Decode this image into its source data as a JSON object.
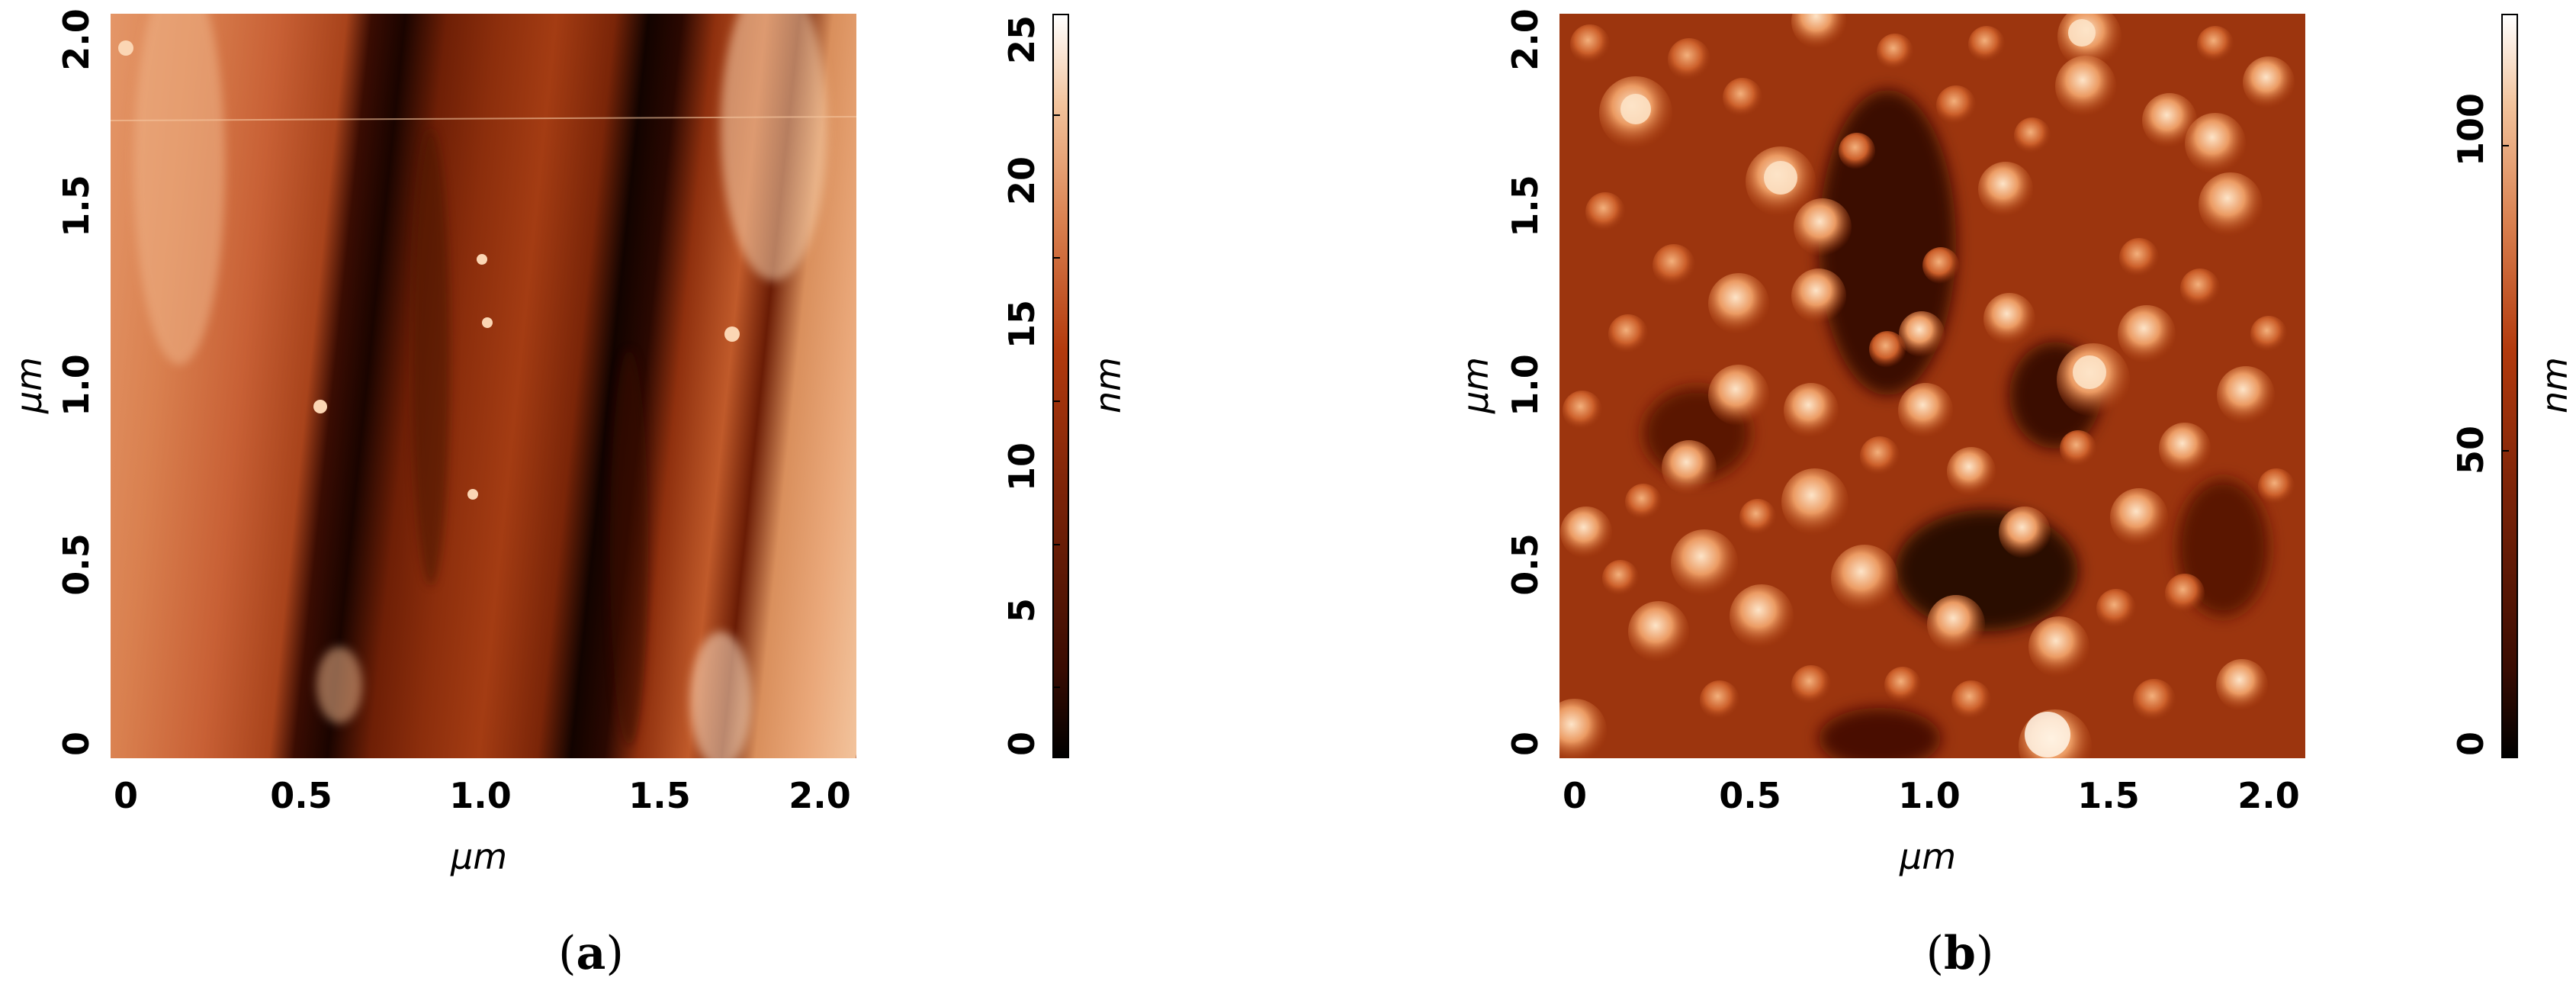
{
  "figure": {
    "panels": [
      {
        "id": "a",
        "label_open": "(",
        "label_letter": "a",
        "label_close": ")",
        "y_ticks": [
          "0",
          "0.5",
          "1.0",
          "1.5",
          "2.0"
        ],
        "x_ticks": [
          "0",
          "0.5",
          "1.0",
          "1.5",
          "2.0"
        ],
        "x_axis_title": "μm",
        "y_axis_title": "μm",
        "colorbar": {
          "ticks": [
            "0",
            "5",
            "10",
            "15",
            "20",
            "25"
          ],
          "unit": "nm",
          "range": [
            0,
            26
          ]
        },
        "texture": "vertical grooves"
      },
      {
        "id": "b",
        "label_open": "(",
        "label_letter": "b",
        "label_close": ")",
        "y_ticks": [
          "0",
          "0.5",
          "1.0",
          "1.5",
          "2.0"
        ],
        "x_ticks": [
          "0",
          "0.5",
          "1.0",
          "1.5",
          "2.0"
        ],
        "x_axis_title": "μm",
        "y_axis_title": "μm",
        "colorbar": {
          "ticks": [
            "0",
            "50",
            "100"
          ],
          "unit": "nm",
          "range": [
            0,
            120
          ]
        },
        "texture": "granular particles"
      }
    ],
    "colormap": {
      "low": "#000000",
      "mid": "#b33a0d",
      "high": "#ffffff"
    }
  }
}
